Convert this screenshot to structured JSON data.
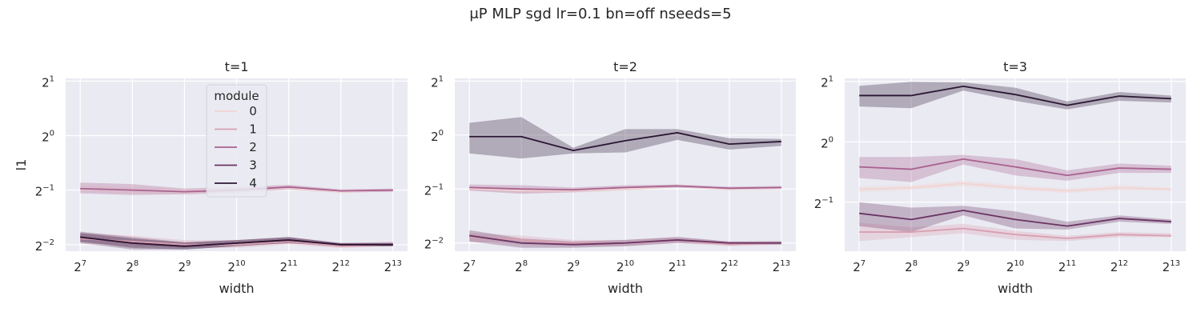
{
  "figure": {
    "title": "μP MLP sgd lr=0.1 bn=off nseeds=5"
  },
  "chart_data": [
    {
      "type": "line",
      "title": "t=1",
      "xlabel": "width",
      "ylabel": "l1",
      "x_scale": "log2",
      "y_scale": "log2",
      "x": [
        128,
        256,
        512,
        1024,
        2048,
        4096,
        8192
      ],
      "x_tick_labels": [
        [
          "2",
          "7"
        ],
        [
          "2",
          "8"
        ],
        [
          "2",
          "9"
        ],
        [
          "2",
          "10"
        ],
        [
          "2",
          "11"
        ],
        [
          "2",
          "12"
        ],
        [
          "2",
          "13"
        ]
      ],
      "y_ticks": [
        0.25,
        0.5,
        1,
        2
      ],
      "y_tick_labels": [
        [
          "2",
          "−2"
        ],
        [
          "2",
          "−1"
        ],
        [
          "2",
          "0"
        ],
        [
          "2",
          "1"
        ]
      ],
      "ylim": [
        0.23,
        2.07
      ],
      "grid": true,
      "legend": {
        "title": "module",
        "position": "upper-center"
      },
      "series": [
        {
          "name": "0",
          "color": "#f2d4d0",
          "values": [
            0.51,
            0.5,
            0.49,
            0.5,
            0.515,
            0.49,
            0.5
          ],
          "lower": [
            0.49,
            0.48,
            0.47,
            0.48,
            0.5,
            0.48,
            0.49
          ],
          "upper": [
            0.53,
            0.52,
            0.51,
            0.52,
            0.53,
            0.5,
            0.51
          ]
        },
        {
          "name": "1",
          "color": "#d99fb0",
          "values": [
            0.27,
            0.26,
            0.25,
            0.25,
            0.26,
            0.245,
            0.25
          ],
          "lower": [
            0.255,
            0.245,
            0.24,
            0.24,
            0.25,
            0.24,
            0.245
          ],
          "upper": [
            0.29,
            0.28,
            0.265,
            0.265,
            0.275,
            0.255,
            0.26
          ]
        },
        {
          "name": "2",
          "color": "#a86190",
          "values": [
            0.51,
            0.5,
            0.49,
            0.5,
            0.52,
            0.495,
            0.5
          ],
          "lower": [
            0.48,
            0.47,
            0.475,
            0.485,
            0.505,
            0.485,
            0.49
          ],
          "upper": [
            0.55,
            0.54,
            0.51,
            0.52,
            0.535,
            0.505,
            0.51
          ]
        },
        {
          "name": "3",
          "color": "#6a3463",
          "values": [
            0.275,
            0.255,
            0.245,
            0.255,
            0.265,
            0.25,
            0.25
          ],
          "lower": [
            0.255,
            0.235,
            0.235,
            0.245,
            0.255,
            0.243,
            0.245
          ],
          "upper": [
            0.295,
            0.275,
            0.258,
            0.265,
            0.275,
            0.255,
            0.256
          ]
        },
        {
          "name": "4",
          "color": "#2c1734",
          "values": [
            0.275,
            0.255,
            0.245,
            0.255,
            0.265,
            0.25,
            0.25
          ],
          "lower": [
            0.26,
            0.24,
            0.235,
            0.245,
            0.255,
            0.245,
            0.245
          ],
          "upper": [
            0.29,
            0.27,
            0.257,
            0.265,
            0.275,
            0.255,
            0.256
          ]
        }
      ]
    },
    {
      "type": "line",
      "title": "t=2",
      "xlabel": "width",
      "ylabel": "",
      "x_scale": "log2",
      "y_scale": "log2",
      "x": [
        128,
        256,
        512,
        1024,
        2048,
        4096,
        8192
      ],
      "x_tick_labels": [
        [
          "2",
          "7"
        ],
        [
          "2",
          "8"
        ],
        [
          "2",
          "9"
        ],
        [
          "2",
          "10"
        ],
        [
          "2",
          "11"
        ],
        [
          "2",
          "12"
        ],
        [
          "2",
          "13"
        ]
      ],
      "y_ticks": [
        0.25,
        0.5,
        1,
        2
      ],
      "y_tick_labels": [
        [
          "2",
          "−2"
        ],
        [
          "2",
          "−1"
        ],
        [
          "2",
          "0"
        ],
        [
          "2",
          "1"
        ]
      ],
      "ylim": [
        0.225,
        2.07
      ],
      "grid": true,
      "series": [
        {
          "name": "0",
          "color": "#f2d4d0",
          "values": [
            0.505,
            0.49,
            0.49,
            0.5,
            0.52,
            0.5,
            0.51
          ],
          "lower": [
            0.49,
            0.475,
            0.475,
            0.49,
            0.51,
            0.49,
            0.5
          ],
          "upper": [
            0.52,
            0.505,
            0.505,
            0.51,
            0.53,
            0.51,
            0.52
          ]
        },
        {
          "name": "1",
          "color": "#d99fb0",
          "values": [
            0.27,
            0.26,
            0.25,
            0.25,
            0.26,
            0.245,
            0.25
          ],
          "lower": [
            0.255,
            0.245,
            0.24,
            0.24,
            0.25,
            0.24,
            0.245
          ],
          "upper": [
            0.285,
            0.275,
            0.26,
            0.26,
            0.27,
            0.255,
            0.255
          ]
        },
        {
          "name": "2",
          "color": "#a86190",
          "values": [
            0.51,
            0.5,
            0.495,
            0.51,
            0.52,
            0.505,
            0.51
          ],
          "lower": [
            0.49,
            0.47,
            0.48,
            0.495,
            0.51,
            0.495,
            0.5
          ],
          "upper": [
            0.53,
            0.525,
            0.51,
            0.525,
            0.53,
            0.515,
            0.52
          ]
        },
        {
          "name": "3",
          "color": "#6a3463",
          "values": [
            0.275,
            0.25,
            0.245,
            0.25,
            0.26,
            0.25,
            0.25
          ],
          "lower": [
            0.255,
            0.235,
            0.235,
            0.24,
            0.25,
            0.245,
            0.245
          ],
          "upper": [
            0.295,
            0.265,
            0.255,
            0.26,
            0.27,
            0.255,
            0.256
          ]
        },
        {
          "name": "4",
          "color": "#2c1734",
          "values": [
            0.98,
            0.98,
            0.82,
            0.93,
            1.03,
            0.89,
            0.92
          ],
          "lower": [
            0.79,
            0.74,
            0.79,
            0.8,
            0.94,
            0.83,
            0.87
          ],
          "upper": [
            1.17,
            1.26,
            0.85,
            1.08,
            1.08,
            0.96,
            0.95
          ]
        }
      ]
    },
    {
      "type": "line",
      "title": "t=3",
      "xlabel": "width",
      "ylabel": "",
      "x_scale": "log2",
      "y_scale": "log2",
      "x": [
        128,
        256,
        512,
        1024,
        2048,
        4096,
        8192
      ],
      "x_tick_labels": [
        [
          "2",
          "7"
        ],
        [
          "2",
          "8"
        ],
        [
          "2",
          "9"
        ],
        [
          "2",
          "10"
        ],
        [
          "2",
          "11"
        ],
        [
          "2",
          "12"
        ],
        [
          "2",
          "13"
        ]
      ],
      "y_ticks": [
        0.5,
        1,
        2
      ],
      "y_tick_labels": [
        [
          "2",
          "−1"
        ],
        [
          "2",
          "0"
        ],
        [
          "2",
          "1"
        ]
      ],
      "ylim": [
        0.285,
        2.07
      ],
      "grid": true,
      "series": [
        {
          "name": "0",
          "color": "#f2d4d0",
          "values": [
            0.58,
            0.59,
            0.62,
            0.59,
            0.57,
            0.59,
            0.58
          ],
          "lower": [
            0.56,
            0.575,
            0.6,
            0.575,
            0.555,
            0.575,
            0.57
          ],
          "upper": [
            0.6,
            0.61,
            0.64,
            0.61,
            0.585,
            0.61,
            0.59
          ]
        },
        {
          "name": "1",
          "color": "#d99fb0",
          "values": [
            0.355,
            0.355,
            0.37,
            0.345,
            0.33,
            0.345,
            0.34
          ],
          "lower": [
            0.32,
            0.335,
            0.35,
            0.325,
            0.32,
            0.335,
            0.335
          ],
          "upper": [
            0.395,
            0.375,
            0.39,
            0.36,
            0.34,
            0.355,
            0.35
          ]
        },
        {
          "name": "2",
          "color": "#a86190",
          "values": [
            0.75,
            0.73,
            0.82,
            0.75,
            0.68,
            0.74,
            0.73
          ],
          "lower": [
            0.66,
            0.63,
            0.77,
            0.68,
            0.64,
            0.7,
            0.7
          ],
          "upper": [
            0.84,
            0.84,
            0.86,
            0.82,
            0.72,
            0.78,
            0.76
          ]
        },
        {
          "name": "3",
          "color": "#6a3463",
          "values": [
            0.44,
            0.41,
            0.455,
            0.41,
            0.38,
            0.415,
            0.4
          ],
          "lower": [
            0.38,
            0.355,
            0.43,
            0.37,
            0.365,
            0.4,
            0.39
          ],
          "upper": [
            0.5,
            0.47,
            0.48,
            0.45,
            0.4,
            0.43,
            0.41
          ]
        },
        {
          "name": "4",
          "color": "#2c1734",
          "values": [
            1.7,
            1.7,
            1.89,
            1.72,
            1.52,
            1.69,
            1.64
          ],
          "lower": [
            1.5,
            1.47,
            1.8,
            1.6,
            1.45,
            1.6,
            1.57
          ],
          "upper": [
            1.9,
            1.99,
            1.98,
            1.86,
            1.59,
            1.77,
            1.7
          ]
        }
      ]
    }
  ]
}
